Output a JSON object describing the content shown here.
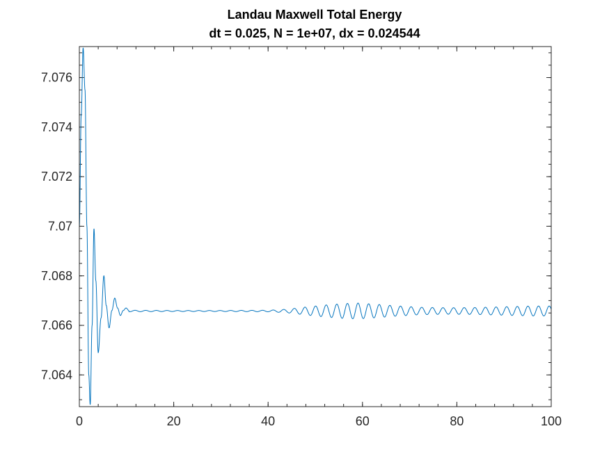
{
  "chart_data": {
    "type": "line",
    "title": "Landau Maxwell Total Energy",
    "subtitle": "dt = 0.025, N = 1e+07, dx = 0.024544",
    "xlabel": "",
    "ylabel": "",
    "xlim": [
      0,
      100
    ],
    "ylim": [
      7.06272,
      7.07725
    ],
    "grid": false,
    "line_color": "#0072BD",
    "axis_color": "#262626",
    "x_ticks": [
      0,
      20,
      40,
      60,
      80,
      100
    ],
    "x_tick_labels": [
      "0",
      "20",
      "40",
      "60",
      "80",
      "100"
    ],
    "y_ticks": [
      7.064,
      7.066,
      7.068,
      7.07,
      7.072,
      7.074,
      7.076
    ],
    "y_tick_labels": [
      "7.064",
      "7.066",
      "7.068",
      "7.07",
      "7.072",
      "7.074",
      "7.076"
    ],
    "series": [
      {
        "baseline": 7.06658,
        "samples": [
          [
            0.0,
            7.07
          ],
          [
            0.4,
            7.0745
          ],
          [
            0.8,
            7.0772
          ],
          [
            1.2,
            7.0755
          ],
          [
            1.6,
            7.07
          ],
          [
            2.0,
            7.064
          ],
          [
            2.3,
            7.0628
          ],
          [
            2.7,
            7.066
          ],
          [
            3.1,
            7.0699
          ],
          [
            3.5,
            7.0678
          ],
          [
            4.0,
            7.0649
          ],
          [
            4.6,
            7.0663
          ],
          [
            5.2,
            7.068
          ],
          [
            5.7,
            7.0668
          ],
          [
            6.3,
            7.0659
          ],
          [
            6.9,
            7.0666
          ],
          [
            7.5,
            7.0671
          ],
          [
            8.1,
            7.0667
          ],
          [
            8.7,
            7.0664
          ],
          [
            9.3,
            7.0666
          ],
          [
            9.9,
            7.0667
          ],
          [
            10.5,
            7.0666
          ],
          [
            11.0,
            7.0666
          ],
          [
            12.0,
            7.0666
          ],
          [
            20.0,
            7.0666
          ],
          [
            30.0,
            7.0666
          ],
          [
            40.0,
            7.0666
          ],
          [
            45.0,
            7.0666
          ],
          [
            50.0,
            7.0666
          ],
          [
            55.0,
            7.0666
          ],
          [
            60.0,
            7.0666
          ],
          [
            65.0,
            7.0666
          ],
          [
            70.0,
            7.0666
          ],
          [
            75.0,
            7.0666
          ],
          [
            80.0,
            7.0666
          ],
          [
            85.0,
            7.0666
          ],
          [
            90.0,
            7.0666
          ],
          [
            95.0,
            7.0666
          ],
          [
            100.0,
            7.0666
          ]
        ],
        "late_oscillation": {
          "period": 2.25,
          "amplitude_profile": [
            [
              10,
              3e-05
            ],
            [
              20,
              2e-05
            ],
            [
              30,
              2e-05
            ],
            [
              40,
              3e-05
            ],
            [
              44,
              7e-05
            ],
            [
              48,
              0.00016
            ],
            [
              52,
              0.00024
            ],
            [
              56,
              0.0003
            ],
            [
              59,
              0.00032
            ],
            [
              63,
              0.00027
            ],
            [
              67,
              0.00021
            ],
            [
              72,
              0.00015
            ],
            [
              78,
              0.00013
            ],
            [
              84,
              0.00014
            ],
            [
              90,
              0.00017
            ],
            [
              96,
              0.0002
            ],
            [
              100,
              0.0002
            ]
          ]
        }
      }
    ]
  }
}
